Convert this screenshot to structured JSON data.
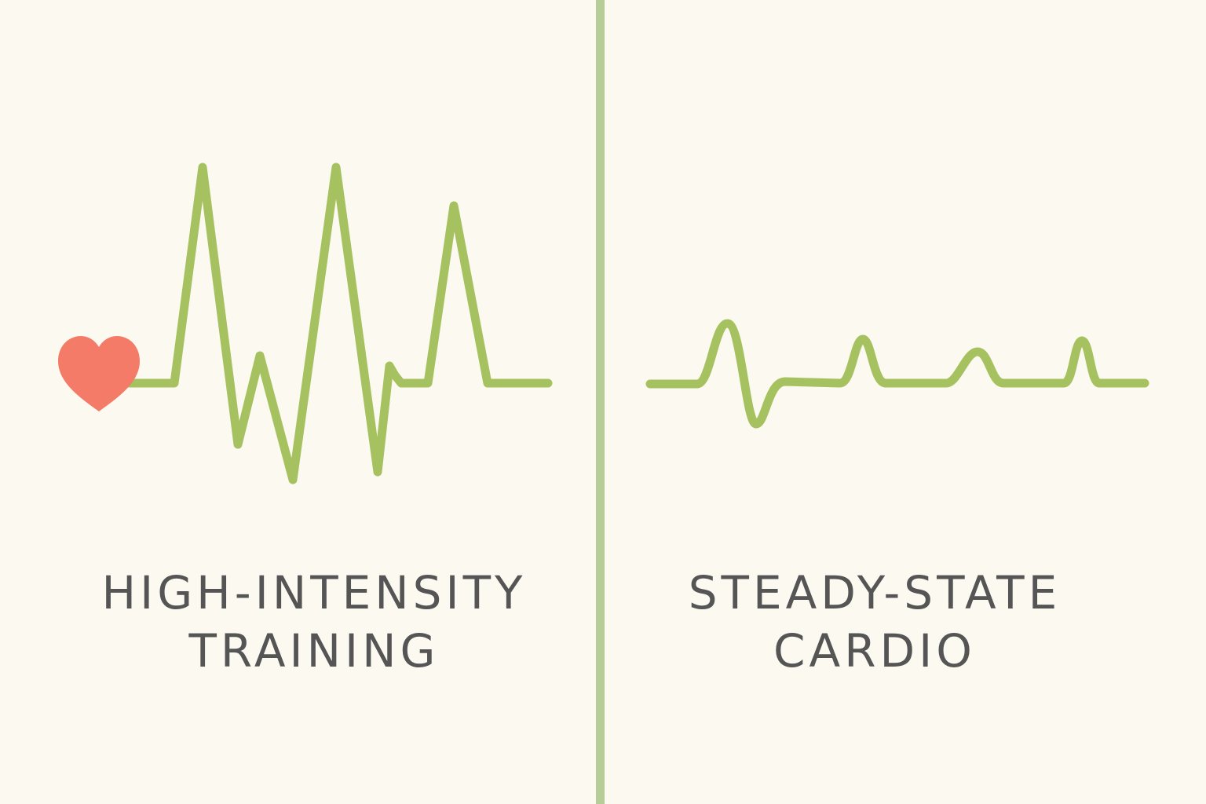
{
  "colors": {
    "background": "#fcfaf0",
    "wave": "#a6c260",
    "divider": "#b7cd98",
    "heart": "#f37b67",
    "text": "#555555"
  },
  "left_panel": {
    "icon": "heart-icon",
    "label_line1": "HIGH-INTENSITY",
    "label_line2": "TRAINING"
  },
  "right_panel": {
    "label_line1": "STEADY-STATE",
    "label_line2": "CARDIO"
  }
}
